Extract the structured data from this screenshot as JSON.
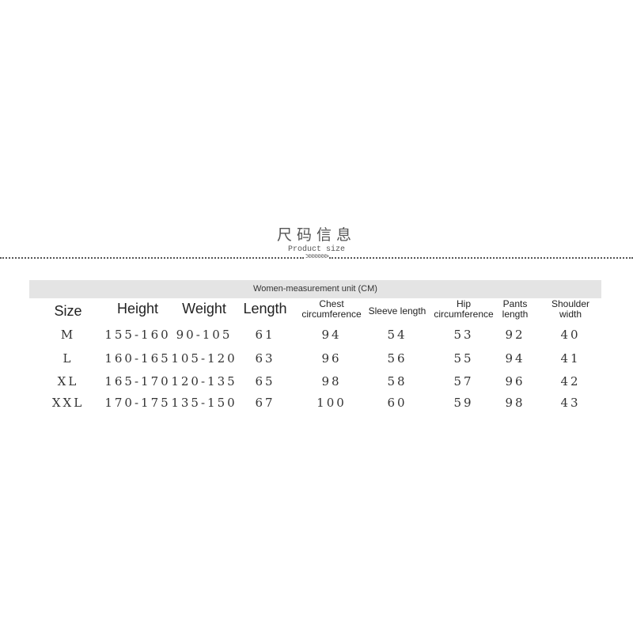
{
  "title": "尺码信息",
  "subtitle": "Product size",
  "divider_chevrons": ">>>>>>>",
  "unit_label": "Women-measurement unit (CM)",
  "columns": [
    {
      "line1": "Size",
      "line2": ""
    },
    {
      "line1": "Height",
      "line2": ""
    },
    {
      "line1": "Weight",
      "line2": ""
    },
    {
      "line1": "Length",
      "line2": ""
    },
    {
      "line1": "Chest",
      "line2": "circumference"
    },
    {
      "line1": "Sleeve length",
      "line2": ""
    },
    {
      "line1": "Hip",
      "line2": "circumference"
    },
    {
      "line1": "Pants",
      "line2": "length"
    },
    {
      "line1": "Shoulder",
      "line2": "width"
    }
  ],
  "rows": [
    [
      "M",
      "155-160",
      "90-105",
      "61",
      "94",
      "54",
      "53",
      "92",
      "40"
    ],
    [
      "L",
      "160-165",
      "105-120",
      "63",
      "96",
      "56",
      "55",
      "94",
      "41"
    ],
    [
      "XL",
      "165-170",
      "120-135",
      "65",
      "98",
      "58",
      "57",
      "96",
      "42"
    ],
    [
      "XXL",
      "170-175",
      "135-150",
      "67",
      "100",
      "60",
      "59",
      "98",
      "43"
    ]
  ]
}
